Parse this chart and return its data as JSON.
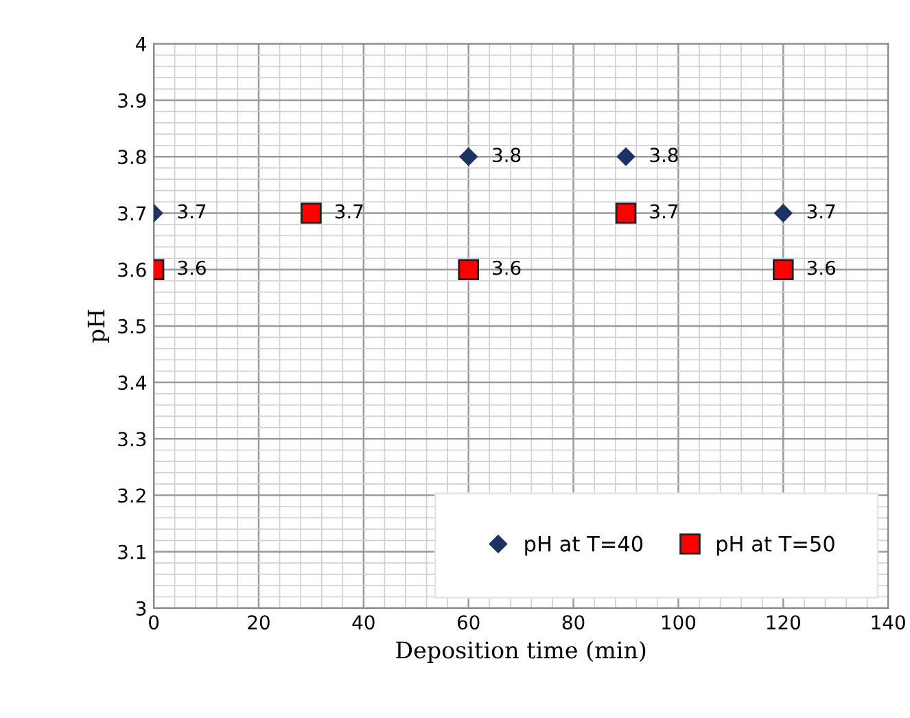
{
  "chart_data": {
    "type": "scatter",
    "xlabel": "Deposition time (min)",
    "ylabel": "pH",
    "x": [
      0,
      30,
      60,
      90,
      120
    ],
    "series": [
      {
        "name": "pH at T=40",
        "color": "#1f3264",
        "marker": "diamond",
        "values": [
          3.7,
          null,
          3.8,
          3.8,
          3.7
        ]
      },
      {
        "name": "pH at T=50",
        "color": "#ff0000",
        "marker": "square",
        "values": [
          3.6,
          3.7,
          3.6,
          3.7,
          3.6
        ]
      }
    ],
    "xlim": [
      0,
      140
    ],
    "xticks": [
      0,
      20,
      40,
      60,
      80,
      100,
      120,
      140
    ],
    "ylim": [
      3,
      4
    ],
    "yticks": [
      3,
      3.1,
      3.2,
      3.3,
      3.4,
      3.5,
      3.6,
      3.7,
      3.8,
      3.9,
      4
    ],
    "grid": true,
    "legend": "bottom right",
    "data_labels": true
  }
}
